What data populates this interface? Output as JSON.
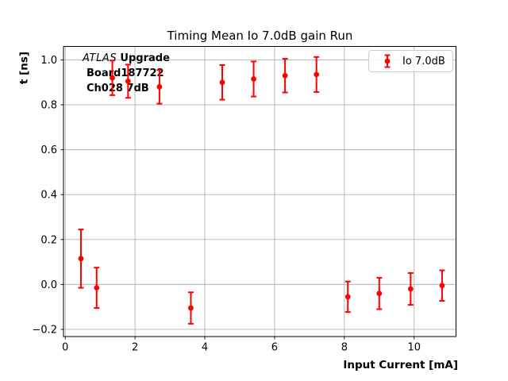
{
  "chart_data": {
    "type": "scatter",
    "title": "Timing Mean Io 7.0dB gain Run",
    "xlabel": "Input Current [mA]",
    "ylabel": "t [ns]",
    "xlim": [
      -0.05,
      11.2
    ],
    "ylim": [
      -0.232,
      1.06
    ],
    "xticks": [
      0,
      2,
      4,
      6,
      8,
      10
    ],
    "yticks": [
      -0.2,
      0.0,
      0.2,
      0.4,
      0.6,
      0.8,
      1.0
    ],
    "grid": true,
    "grid_color": "#b0b0b0",
    "legend_position": "upper right",
    "series": [
      {
        "name": "Io 7.0dB",
        "color": "#ff0000",
        "marker": "circle-with-errorbars",
        "x": [
          0.45,
          0.9,
          1.35,
          1.8,
          2.7,
          3.6,
          4.5,
          5.4,
          6.3,
          7.2,
          8.1,
          9.0,
          9.9,
          10.8
        ],
        "y": [
          0.115,
          -0.015,
          0.92,
          0.905,
          0.88,
          -0.105,
          0.9,
          0.915,
          0.93,
          0.935,
          -0.055,
          -0.04,
          -0.02,
          -0.005
        ],
        "yerr": [
          0.13,
          0.09,
          0.077,
          0.074,
          0.075,
          0.07,
          0.077,
          0.078,
          0.075,
          0.078,
          0.068,
          0.07,
          0.071,
          0.068
        ]
      }
    ]
  },
  "annotation": {
    "experiment": "ATLAS",
    "tag": "Upgrade",
    "board": "Board187722",
    "channel": "Ch028 7dB"
  }
}
